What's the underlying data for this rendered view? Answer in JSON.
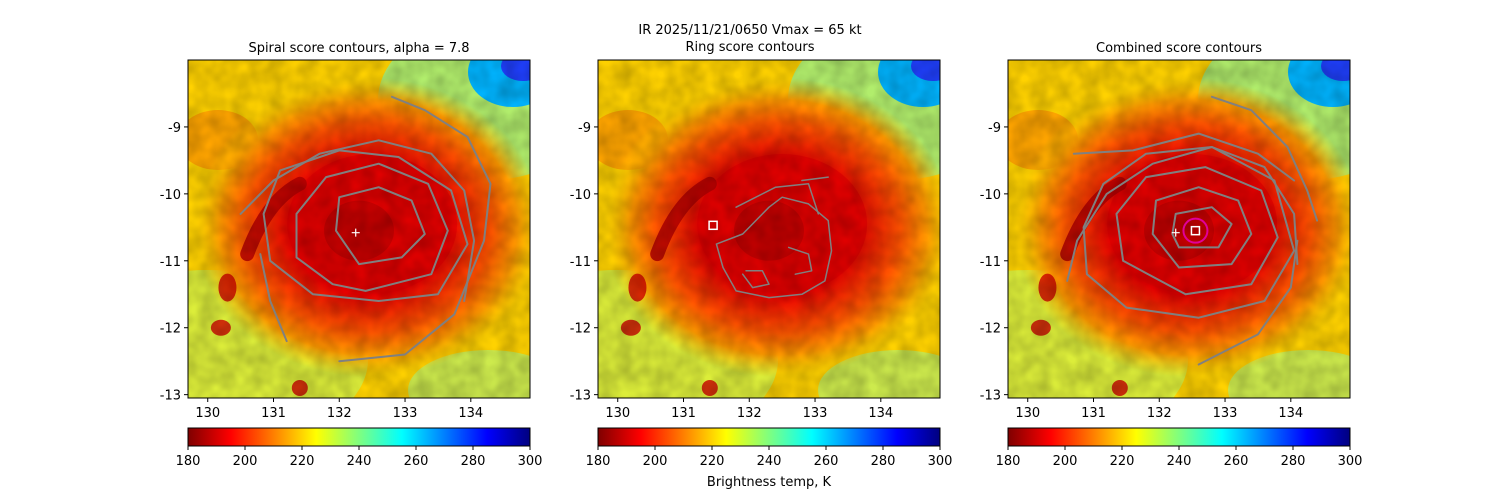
{
  "suptitle": {
    "line1": "IR  2025/11/21/0650    Vmax = 65 kt",
    "line2": "Ring score contours"
  },
  "colors": {
    "contour": "#808080",
    "marker": "#ffffff",
    "circle": "#e0009a",
    "cmap": [
      "#7f0000",
      "#ff0000",
      "#ff7f00",
      "#ffff00",
      "#7fff7f",
      "#00ffff",
      "#007fff",
      "#0000ff",
      "#00007f"
    ]
  },
  "chart_data": [
    {
      "type": "heatmap",
      "title": "Spiral score contours, alpha =  7.8",
      "xlim": [
        129.7,
        134.9
      ],
      "ylim": [
        -13.05,
        -8.0
      ],
      "xticks": [
        130,
        131,
        132,
        133,
        134
      ],
      "yticks": [
        -9,
        -10,
        -11,
        -12,
        -13
      ],
      "center": [
        132.25,
        -10.58
      ],
      "contours": [
        [
          [
            132.3,
            -11.05
          ],
          [
            132.95,
            -10.95
          ],
          [
            133.3,
            -10.6
          ],
          [
            133.1,
            -10.1
          ],
          [
            132.6,
            -9.9
          ],
          [
            132.0,
            -10.05
          ],
          [
            131.95,
            -10.55
          ],
          [
            132.3,
            -11.05
          ]
        ],
        [
          [
            132.4,
            -11.45
          ],
          [
            133.4,
            -11.2
          ],
          [
            133.65,
            -10.55
          ],
          [
            133.35,
            -9.85
          ],
          [
            132.6,
            -9.55
          ],
          [
            131.8,
            -9.75
          ],
          [
            131.35,
            -10.3
          ],
          [
            131.35,
            -10.95
          ],
          [
            131.9,
            -11.35
          ],
          [
            132.4,
            -11.45
          ]
        ],
        [
          [
            132.6,
            -11.6
          ],
          [
            133.5,
            -11.5
          ],
          [
            133.95,
            -10.75
          ],
          [
            133.7,
            -9.95
          ],
          [
            132.9,
            -9.45
          ],
          [
            132.0,
            -9.35
          ],
          [
            131.1,
            -9.65
          ],
          [
            130.85,
            -10.3
          ],
          [
            130.95,
            -11.0
          ],
          [
            131.6,
            -11.5
          ],
          [
            132.6,
            -11.6
          ]
        ],
        [
          [
            130.5,
            -10.3
          ],
          [
            131.0,
            -9.8
          ],
          [
            131.7,
            -9.4
          ],
          [
            132.6,
            -9.2
          ],
          [
            133.4,
            -9.4
          ],
          [
            133.9,
            -9.95
          ],
          [
            134.05,
            -10.7
          ],
          [
            133.9,
            -11.6
          ]
        ],
        [
          [
            130.8,
            -10.9
          ],
          [
            130.95,
            -11.6
          ],
          [
            131.2,
            -12.2
          ]
        ],
        [
          [
            132.0,
            -12.5
          ],
          [
            133.0,
            -12.4
          ],
          [
            133.75,
            -11.8
          ],
          [
            134.2,
            -10.7
          ],
          [
            134.3,
            -9.85
          ],
          [
            133.95,
            -9.15
          ],
          [
            133.3,
            -8.75
          ],
          [
            132.8,
            -8.55
          ]
        ]
      ]
    },
    {
      "type": "heatmap",
      "title": "",
      "xlim": [
        129.7,
        134.9
      ],
      "ylim": [
        -13.05,
        -8.0
      ],
      "xticks": [
        130,
        131,
        132,
        133,
        134
      ],
      "yticks": [
        -9,
        -10,
        -11,
        -12,
        -13
      ],
      "square": [
        131.45,
        -10.47
      ],
      "contours": [
        [
          [
            131.5,
            -10.75
          ],
          [
            131.9,
            -10.6
          ],
          [
            132.3,
            -10.2
          ],
          [
            132.5,
            -10.05
          ],
          [
            132.9,
            -10.15
          ],
          [
            133.2,
            -10.4
          ],
          [
            133.25,
            -10.85
          ],
          [
            133.15,
            -11.3
          ],
          [
            132.8,
            -11.5
          ],
          [
            132.3,
            -11.55
          ],
          [
            131.8,
            -11.45
          ],
          [
            131.6,
            -11.1
          ],
          [
            131.5,
            -10.75
          ]
        ],
        [
          [
            131.8,
            -10.2
          ],
          [
            132.4,
            -9.9
          ],
          [
            132.9,
            -9.85
          ],
          [
            133.05,
            -10.3
          ]
        ],
        [
          [
            132.8,
            -9.8
          ],
          [
            133.2,
            -9.75
          ]
        ],
        [
          [
            131.9,
            -11.2
          ],
          [
            132.05,
            -11.4
          ],
          [
            132.3,
            -11.35
          ],
          [
            132.2,
            -11.15
          ],
          [
            131.95,
            -11.15
          ]
        ],
        [
          [
            132.6,
            -10.8
          ],
          [
            132.9,
            -10.9
          ],
          [
            132.95,
            -11.15
          ],
          [
            132.7,
            -11.2
          ]
        ]
      ]
    },
    {
      "type": "heatmap",
      "title": "Combined score contours",
      "xlim": [
        129.7,
        134.9
      ],
      "ylim": [
        -13.05,
        -8.0
      ],
      "xticks": [
        130,
        131,
        132,
        133,
        134
      ],
      "yticks": [
        -9,
        -10,
        -11,
        -12,
        -13
      ],
      "center": [
        132.25,
        -10.58
      ],
      "square": [
        132.55,
        -10.55
      ],
      "circle_center": [
        132.55,
        -10.55
      ],
      "contours": [
        [
          [
            132.3,
            -10.8
          ],
          [
            132.9,
            -10.8
          ],
          [
            133.1,
            -10.45
          ],
          [
            132.8,
            -10.2
          ],
          [
            132.25,
            -10.3
          ],
          [
            132.2,
            -10.6
          ],
          [
            132.3,
            -10.8
          ]
        ],
        [
          [
            132.3,
            -11.1
          ],
          [
            133.1,
            -11.05
          ],
          [
            133.4,
            -10.6
          ],
          [
            133.2,
            -10.1
          ],
          [
            132.6,
            -9.9
          ],
          [
            131.95,
            -10.1
          ],
          [
            131.9,
            -10.6
          ],
          [
            132.3,
            -11.1
          ]
        ],
        [
          [
            132.4,
            -11.5
          ],
          [
            133.4,
            -11.35
          ],
          [
            133.8,
            -10.65
          ],
          [
            133.55,
            -9.95
          ],
          [
            132.7,
            -9.6
          ],
          [
            131.8,
            -9.75
          ],
          [
            131.35,
            -10.3
          ],
          [
            131.45,
            -11.0
          ],
          [
            132.4,
            -11.5
          ]
        ],
        [
          [
            132.6,
            -11.85
          ],
          [
            133.6,
            -11.6
          ],
          [
            134.05,
            -10.85
          ],
          [
            133.75,
            -9.8
          ],
          [
            132.8,
            -9.3
          ],
          [
            131.8,
            -9.4
          ],
          [
            131.15,
            -9.85
          ],
          [
            130.85,
            -10.5
          ],
          [
            130.9,
            -11.2
          ],
          [
            131.5,
            -11.7
          ],
          [
            132.6,
            -11.85
          ]
        ],
        [
          [
            130.6,
            -11.3
          ],
          [
            130.75,
            -10.7
          ],
          [
            131.2,
            -10.0
          ],
          [
            131.9,
            -9.55
          ],
          [
            132.8,
            -9.3
          ],
          [
            133.6,
            -9.6
          ],
          [
            134.05,
            -10.3
          ],
          [
            134.1,
            -11.05
          ]
        ],
        [
          [
            130.7,
            -9.4
          ],
          [
            131.6,
            -9.35
          ],
          [
            132.6,
            -9.1
          ],
          [
            133.5,
            -9.4
          ],
          [
            134.05,
            -9.8
          ]
        ],
        [
          [
            132.6,
            -12.55
          ],
          [
            133.5,
            -12.1
          ],
          [
            134.0,
            -11.4
          ],
          [
            134.1,
            -10.7
          ]
        ],
        [
          [
            132.8,
            -8.55
          ],
          [
            133.4,
            -8.75
          ],
          [
            133.95,
            -9.3
          ],
          [
            134.25,
            -9.95
          ],
          [
            134.4,
            -10.4
          ]
        ]
      ]
    }
  ],
  "colorbar": {
    "ticks": [
      180,
      200,
      220,
      240,
      260,
      280,
      300
    ],
    "vmin": 180,
    "vmax": 300,
    "label": "Brightness temp, K"
  }
}
